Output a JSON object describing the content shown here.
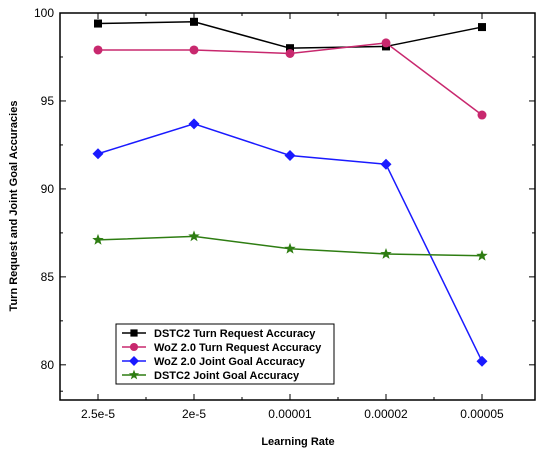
{
  "chart_data": {
    "type": "line",
    "categories": [
      "2.5e-5",
      "2e-5",
      "0.00001",
      "0.00002",
      "0.00005"
    ],
    "xlabel": "Learning Rate",
    "ylabel": "Turn Request and Joint Goal Accuracies",
    "ylim": [
      78,
      100
    ],
    "yticks": [
      80,
      85,
      90,
      95,
      100
    ],
    "grid": false,
    "legend_position": "bottom-left",
    "series": [
      {
        "name": "DSTC2 Turn Request Accuracy",
        "color": "#000000",
        "marker": "square",
        "values": [
          99.4,
          99.5,
          98.0,
          98.1,
          99.2
        ]
      },
      {
        "name": "WoZ 2.0 Turn Request Accuracy",
        "color": "#c8286e",
        "marker": "circle",
        "values": [
          97.9,
          97.9,
          97.7,
          98.3,
          94.2
        ]
      },
      {
        "name": "WoZ 2.0 Joint Goal Accuracy",
        "color": "#1a1aff",
        "marker": "diamond",
        "values": [
          92.0,
          93.7,
          91.9,
          91.4,
          80.2
        ]
      },
      {
        "name": "DSTC2 Joint Goal Accuracy",
        "color": "#2e7d12",
        "marker": "star",
        "values": [
          87.1,
          87.3,
          86.6,
          86.3,
          86.2
        ]
      }
    ]
  }
}
